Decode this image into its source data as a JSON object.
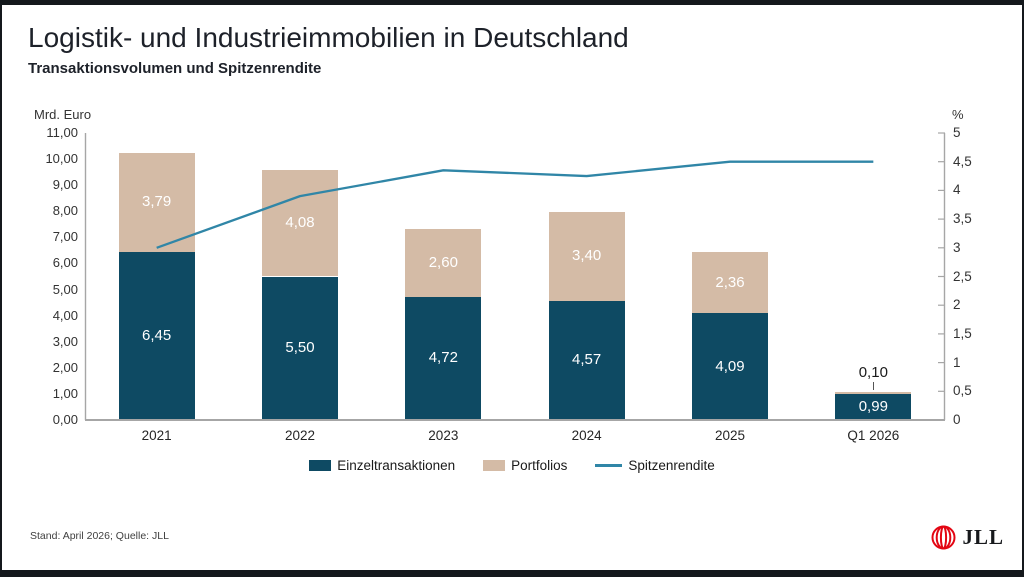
{
  "header": {
    "title": "Logistik- und Industrieimmobilien in Deutschland",
    "subtitle": "Transaktionsvolumen und Spitzenrendite"
  },
  "footer": {
    "note": "Stand: April 2026; Quelle: JLL",
    "logo_text": "JLL"
  },
  "colors": {
    "einzeltransaktionen": "#0e4a63",
    "portfolios": "#d4bba6",
    "spitzenrendite": "#3086a7",
    "axis_gray": "#a6a6a6",
    "jll_red": "#e30613",
    "text_dark": "#1d2129"
  },
  "chart_data": {
    "type": "bar",
    "subtype": "stacked-bar-with-line",
    "title": "Logistik- und Industrieimmobilien in Deutschland",
    "subtitle": "Transaktionsvolumen und Spitzenrendite",
    "categories": [
      "2021",
      "2022",
      "2023",
      "2024",
      "2025",
      "Q1 2026"
    ],
    "series": [
      {
        "name": "Einzeltransaktionen",
        "type": "bar",
        "axis": "left",
        "color": "#0e4a63",
        "values": [
          6.45,
          5.5,
          4.72,
          4.57,
          4.09,
          0.99
        ],
        "labels": [
          "6,45",
          "5,50",
          "4,72",
          "4,57",
          "4,09",
          "0,99"
        ]
      },
      {
        "name": "Portfolios",
        "type": "bar",
        "axis": "left",
        "color": "#d4bba6",
        "values": [
          3.79,
          4.08,
          2.6,
          3.4,
          2.36,
          0.1
        ],
        "labels": [
          "3,79",
          "4,08",
          "2,60",
          "3,40",
          "2,36",
          "0,10"
        ]
      },
      {
        "name": "Spitzenrendite",
        "type": "line",
        "axis": "right",
        "color": "#3086a7",
        "values": [
          3.0,
          3.9,
          4.35,
          4.25,
          4.5,
          4.5
        ]
      }
    ],
    "y_left": {
      "label": "Mrd. Euro",
      "min": 0,
      "max": 11,
      "tick_step": 1,
      "ticks": [
        "0,00",
        "1,00",
        "2,00",
        "3,00",
        "4,00",
        "5,00",
        "6,00",
        "7,00",
        "8,00",
        "9,00",
        "10,00",
        "11,00"
      ]
    },
    "y_right": {
      "label": "%",
      "min": 0,
      "max": 5,
      "tick_step": 0.5,
      "ticks": [
        "0",
        "0,5",
        "1",
        "1,5",
        "2",
        "2,5",
        "3",
        "3,5",
        "4",
        "4,5",
        "5"
      ]
    },
    "legend": [
      "Einzeltransaktionen",
      "Portfolios",
      "Spitzenrendite"
    ],
    "legend_position": "bottom",
    "grid": false,
    "stacked": true
  }
}
